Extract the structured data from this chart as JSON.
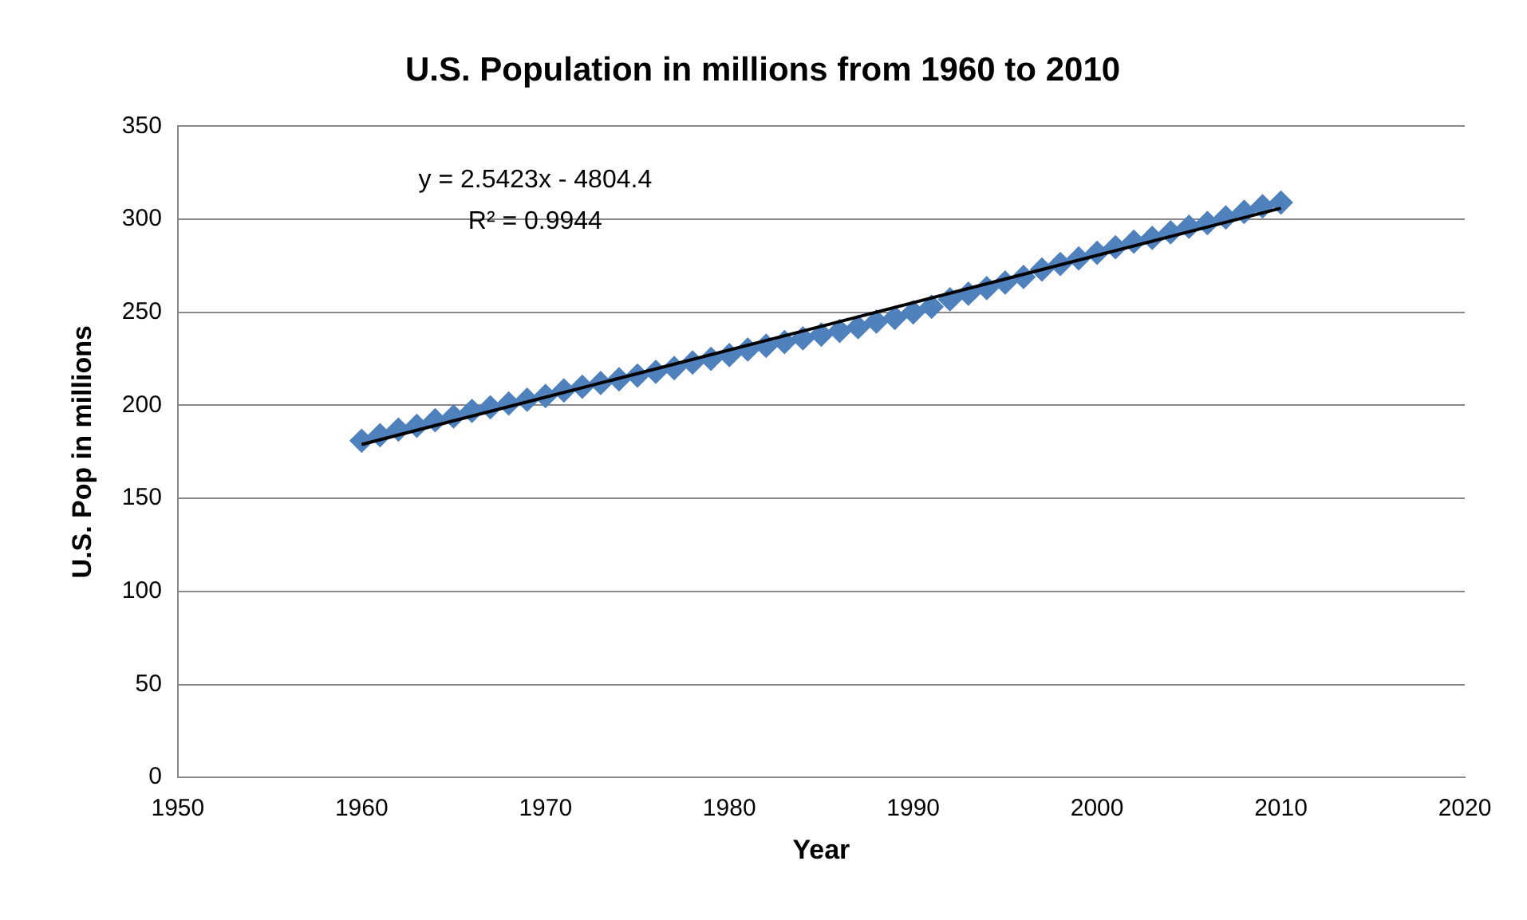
{
  "chart_data": {
    "type": "scatter",
    "title": "U.S. Population in millions from 1960 to 2010",
    "xlabel": "Year",
    "ylabel": "U.S. Pop in millions",
    "xlim": [
      1950,
      2020
    ],
    "xticks": [
      1950,
      1960,
      1970,
      1980,
      1990,
      2000,
      2010,
      2020
    ],
    "ylim": [
      0,
      350
    ],
    "yticks": [
      0,
      50,
      100,
      150,
      200,
      250,
      300,
      350
    ],
    "grid": "y",
    "legend": false,
    "marker": "diamond",
    "annotations": [
      "y = 2.5423x - 4804.4",
      "R² = 0.9944"
    ],
    "series": [
      {
        "type": "scatter",
        "color": "#4f81bd",
        "x": [
          1960,
          1961,
          1962,
          1963,
          1964,
          1965,
          1966,
          1967,
          1968,
          1969,
          1970,
          1971,
          1972,
          1973,
          1974,
          1975,
          1976,
          1977,
          1978,
          1979,
          1980,
          1981,
          1982,
          1983,
          1984,
          1985,
          1986,
          1987,
          1988,
          1989,
          1990,
          1991,
          1992,
          1993,
          1994,
          1995,
          1996,
          1997,
          1998,
          1999,
          2000,
          2001,
          2002,
          2003,
          2004,
          2005,
          2006,
          2007,
          2008,
          2009,
          2010
        ],
        "values": [
          181,
          184,
          187,
          189,
          192,
          194,
          197,
          199,
          201,
          203,
          205,
          208,
          210,
          212,
          214,
          216,
          218,
          220,
          223,
          225,
          227,
          230,
          232,
          234,
          236,
          238,
          240,
          242,
          245,
          247,
          250,
          253,
          257,
          260,
          263,
          266,
          269,
          273,
          276,
          279,
          282,
          285,
          288,
          290,
          293,
          296,
          298,
          301,
          304,
          307,
          309
        ]
      },
      {
        "type": "line",
        "color": "#000000",
        "marker": "none",
        "x": [
          1960,
          2010
        ],
        "values": [
          179,
          306
        ]
      }
    ]
  }
}
